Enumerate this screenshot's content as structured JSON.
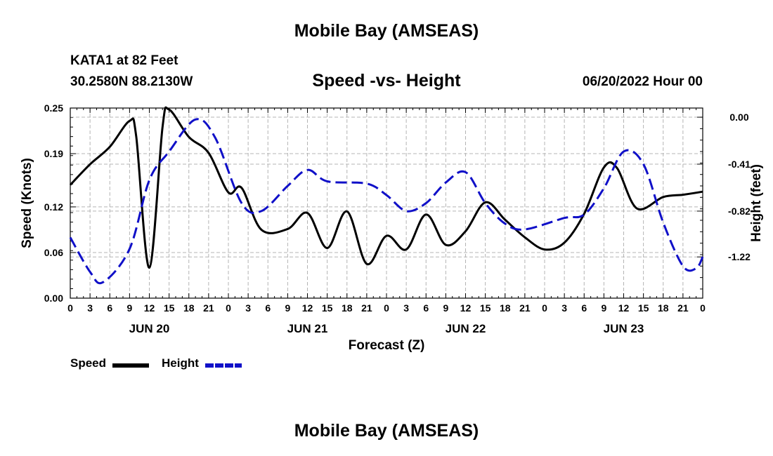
{
  "header": {
    "title": "Mobile Bay (AMSEAS)",
    "station": "KATA1 at 82 Feet",
    "coords": "30.2580N  88.2130W",
    "subtitle": "Speed -vs- Height",
    "run_time": "06/20/2022 Hour 00"
  },
  "footer_title": "Mobile Bay (AMSEAS)",
  "legend": {
    "speed_label": "Speed",
    "height_label": "Height"
  },
  "colors": {
    "speed": "#000000",
    "height": "#1010c8",
    "grid": "#b4b4b4"
  },
  "chart_data": {
    "type": "line",
    "title": "Speed -vs- Height",
    "xlabel": "Forecast (Z)",
    "ylabel": "Speed (Knots)",
    "y2label": "Height (feet)",
    "grid": true,
    "legend_position": "bottom-left",
    "x_range_hours": [
      0,
      96
    ],
    "x_tick_labels": [
      "0",
      "3",
      "6",
      "9",
      "12",
      "15",
      "18",
      "21",
      "0",
      "3",
      "6",
      "9",
      "12",
      "15",
      "18",
      "21",
      "0",
      "3",
      "6",
      "9",
      "12",
      "15",
      "18",
      "21",
      "0",
      "3",
      "6",
      "9",
      "12",
      "15",
      "18",
      "21",
      "0"
    ],
    "day_labels": [
      {
        "label": "JUN 20",
        "hour": 12
      },
      {
        "label": "JUN 21",
        "hour": 36
      },
      {
        "label": "JUN 22",
        "hour": 60
      },
      {
        "label": "JUN 23",
        "hour": 84
      }
    ],
    "y_left": {
      "range": [
        0,
        0.25
      ],
      "ticks": [
        "0.25",
        "0.19",
        "0.12",
        "0.06",
        "0.00"
      ],
      "tick_values": [
        0.25,
        0.19,
        0.12,
        0.06,
        0.0
      ]
    },
    "y_right": {
      "range": [
        -1.58,
        0.08
      ],
      "ticks": [
        "0.00",
        "-0.41",
        "-0.82",
        "-1.22"
      ],
      "tick_values": [
        0.0,
        -0.41,
        -0.82,
        -1.22
      ]
    },
    "series": [
      {
        "name": "Speed",
        "axis": "left",
        "style": "solid",
        "points": [
          [
            0,
            0.149
          ],
          [
            3,
            0.176
          ],
          [
            6,
            0.199
          ],
          [
            9,
            0.233
          ],
          [
            10,
            0.213
          ],
          [
            12,
            0.04
          ],
          [
            14,
            0.225
          ],
          [
            15,
            0.248
          ],
          [
            18,
            0.212
          ],
          [
            21,
            0.191
          ],
          [
            24,
            0.139
          ],
          [
            26,
            0.145
          ],
          [
            29,
            0.09
          ],
          [
            33,
            0.091
          ],
          [
            36,
            0.112
          ],
          [
            39,
            0.066
          ],
          [
            42,
            0.114
          ],
          [
            45,
            0.045
          ],
          [
            48,
            0.082
          ],
          [
            51,
            0.064
          ],
          [
            54,
            0.11
          ],
          [
            57,
            0.07
          ],
          [
            60,
            0.088
          ],
          [
            63,
            0.126
          ],
          [
            66,
            0.103
          ],
          [
            69,
            0.08
          ],
          [
            72,
            0.064
          ],
          [
            75,
            0.073
          ],
          [
            78,
            0.111
          ],
          [
            81,
            0.172
          ],
          [
            83,
            0.171
          ],
          [
            86,
            0.118
          ],
          [
            90,
            0.133
          ],
          [
            93,
            0.136
          ],
          [
            96,
            0.14
          ]
        ]
      },
      {
        "name": "Height",
        "axis": "right",
        "style": "dashed",
        "points": [
          [
            0,
            -1.05
          ],
          [
            3,
            -1.35
          ],
          [
            5,
            -1.44
          ],
          [
            9,
            -1.15
          ],
          [
            12,
            -0.55
          ],
          [
            15,
            -0.3
          ],
          [
            19,
            -0.02
          ],
          [
            22,
            -0.18
          ],
          [
            26,
            -0.75
          ],
          [
            29,
            -0.82
          ],
          [
            33,
            -0.6
          ],
          [
            36,
            -0.46
          ],
          [
            39,
            -0.56
          ],
          [
            45,
            -0.58
          ],
          [
            48,
            -0.68
          ],
          [
            51,
            -0.82
          ],
          [
            54,
            -0.75
          ],
          [
            57,
            -0.57
          ],
          [
            60,
            -0.48
          ],
          [
            63,
            -0.75
          ],
          [
            66,
            -0.93
          ],
          [
            69,
            -0.98
          ],
          [
            75,
            -0.88
          ],
          [
            78,
            -0.85
          ],
          [
            81,
            -0.62
          ],
          [
            84,
            -0.3
          ],
          [
            87,
            -0.41
          ],
          [
            90,
            -0.92
          ],
          [
            93,
            -1.3
          ],
          [
            95,
            -1.32
          ],
          [
            96,
            -1.22
          ]
        ]
      }
    ]
  }
}
